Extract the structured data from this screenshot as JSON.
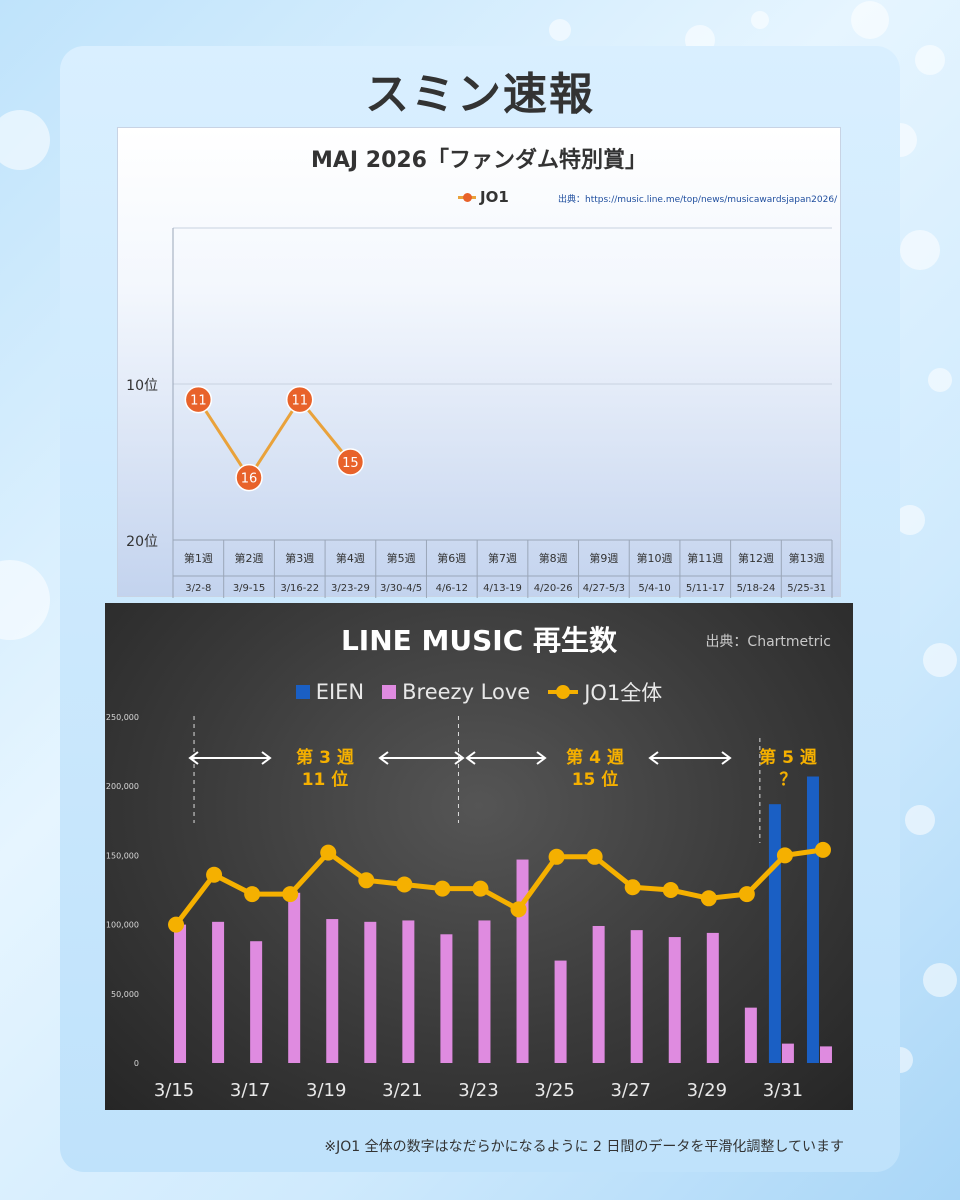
{
  "page_title": "スミン速報",
  "footnote": "※JO1 全体の数字はなだらかになるように 2 日間のデータを平滑化調整しています",
  "colors": {
    "accent_orange": "#e8622a",
    "line_gold": "#f5b000",
    "eien_blue": "#1a5fc4",
    "breezy_pink": "#df8be0"
  },
  "maj_chart": {
    "title": "MAJ 2026「ファンダム特別賞」",
    "legend": "JO1",
    "source": "出典：https://music.line.me/top/news/musicawardsjapan2026/",
    "y_ticks": [
      "10位",
      "20位"
    ],
    "weeks": [
      "第1週",
      "第2週",
      "第3週",
      "第4週",
      "第5週",
      "第6週",
      "第7週",
      "第8週",
      "第9週",
      "第10週",
      "第11週",
      "第12週",
      "第13週"
    ],
    "dates": [
      "3/2-8",
      "3/9-15",
      "3/16-22",
      "3/23-29",
      "3/30-4/5",
      "4/6-12",
      "4/13-19",
      "4/20-26",
      "4/27-5/3",
      "5/4-10",
      "5/11-17",
      "5/18-24",
      "5/25-31"
    ]
  },
  "line_chart": {
    "title": "LINE MUSIC 再生数",
    "source": "出典：Chartmetric",
    "legend": [
      "EIEN",
      "Breezy Love",
      "JO1全体"
    ],
    "annotations": [
      {
        "week": "第 3 週",
        "rank": "11 位"
      },
      {
        "week": "第 4 週",
        "rank": "15 位"
      },
      {
        "week": "第 5 週",
        "rank": "？"
      }
    ],
    "y_tick_labels": [
      "0",
      "50,000",
      "100,000",
      "150,000",
      "200,000",
      "250,000"
    ],
    "x_tick_labels": [
      "3/15",
      "3/17",
      "3/19",
      "3/21",
      "3/23",
      "3/25",
      "3/27",
      "3/29",
      "3/31"
    ]
  },
  "chart_data": [
    {
      "type": "line",
      "title": "MAJ 2026「ファンダム特別賞」",
      "categories": [
        "第1週",
        "第2週",
        "第3週",
        "第4週",
        "第5週",
        "第6週",
        "第7週",
        "第8週",
        "第9週",
        "第10週",
        "第11週",
        "第12週",
        "第13週"
      ],
      "series": [
        {
          "name": "JO1",
          "values": [
            11,
            16,
            11,
            15,
            null,
            null,
            null,
            null,
            null,
            null,
            null,
            null,
            null
          ]
        }
      ],
      "ylim": [
        20,
        0
      ],
      "y_inverted": true,
      "grid": true,
      "legend": "top"
    },
    {
      "type": "bar",
      "title": "LINE MUSIC 再生数",
      "categories": [
        "3/15",
        "3/16",
        "3/17",
        "3/18",
        "3/19",
        "3/20",
        "3/21",
        "3/22",
        "3/23",
        "3/24",
        "3/25",
        "3/26",
        "3/27",
        "3/28",
        "3/29",
        "3/30",
        "3/31",
        "4/1"
      ],
      "series": [
        {
          "name": "EIEN",
          "values": [
            0,
            0,
            0,
            0,
            0,
            0,
            0,
            0,
            0,
            0,
            0,
            0,
            0,
            0,
            0,
            0,
            187000,
            207000
          ]
        },
        {
          "name": "Breezy Love",
          "values": [
            100000,
            102000,
            88000,
            123000,
            104000,
            102000,
            103000,
            93000,
            103000,
            147000,
            74000,
            99000,
            96000,
            91000,
            94000,
            40000,
            14000,
            12000
          ]
        },
        {
          "name": "JO1全体",
          "type": "line",
          "values": [
            100000,
            136000,
            122000,
            122000,
            152000,
            132000,
            129000,
            126000,
            126000,
            111000,
            149000,
            149000,
            127000,
            125000,
            119000,
            122000,
            150000,
            154000
          ]
        }
      ],
      "ylim": [
        0,
        250000
      ],
      "grid": false,
      "legend": "top"
    }
  ]
}
